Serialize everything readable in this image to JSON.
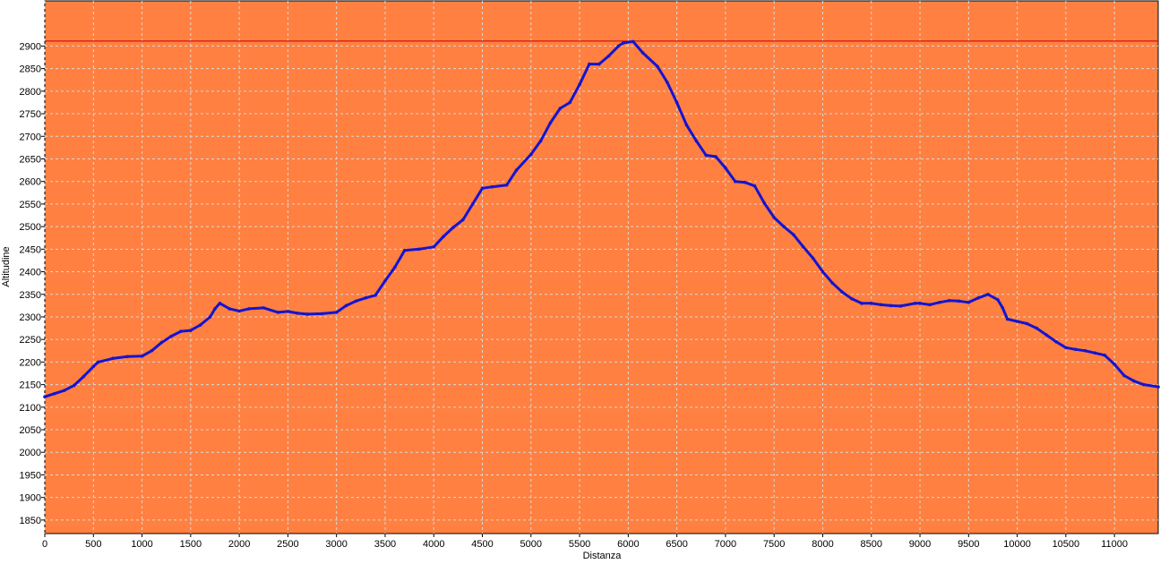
{
  "chart_data": {
    "type": "line",
    "xlabel": "Distanza",
    "ylabel": "Altitudine",
    "xlim": [
      0,
      11450
    ],
    "ylim": [
      1820,
      3000
    ],
    "x_ticks": [
      0,
      500,
      1000,
      1500,
      2000,
      2500,
      3000,
      3500,
      4000,
      4500,
      5000,
      5500,
      6000,
      6500,
      7000,
      7500,
      8000,
      8500,
      9000,
      9500,
      10000,
      10500,
      11000
    ],
    "y_ticks": [
      1850,
      1900,
      1950,
      2000,
      2050,
      2100,
      2150,
      2200,
      2250,
      2300,
      2350,
      2400,
      2450,
      2500,
      2550,
      2600,
      2650,
      2700,
      2750,
      2800,
      2850,
      2900
    ],
    "reference_line": 2911,
    "grid": true,
    "colors": {
      "plot_bg": "#FF8040",
      "line": "#1414D2",
      "grid": "#D9D9D9",
      "ref_line": "#C00000"
    },
    "series": [
      {
        "x": [
          0,
          100,
          200,
          300,
          400,
          500,
          550,
          700,
          850,
          1000,
          1100,
          1200,
          1300,
          1400,
          1500,
          1600,
          1700,
          1750,
          1800,
          1900,
          2000,
          2100,
          2250,
          2400,
          2500,
          2600,
          2700,
          2850,
          3000,
          3100,
          3200,
          3300,
          3400,
          3500,
          3600,
          3700,
          3850,
          4000,
          4100,
          4200,
          4300,
          4400,
          4500,
          4600,
          4750,
          4850,
          5000,
          5100,
          5200,
          5300,
          5400,
          5500,
          5600,
          5700,
          5800,
          5900,
          5950,
          6050,
          6150,
          6300,
          6400,
          6500,
          6600,
          6700,
          6800,
          6900,
          7000,
          7100,
          7200,
          7300,
          7400,
          7500,
          7600,
          7700,
          7800,
          7900,
          8000,
          8100,
          8200,
          8300,
          8400,
          8500,
          8600,
          8700,
          8800,
          8950,
          9000,
          9100,
          9200,
          9300,
          9400,
          9500,
          9600,
          9700,
          9800,
          9850,
          9900,
          10000,
          10100,
          10200,
          10300,
          10400,
          10500,
          10600,
          10700,
          10800,
          10900,
          11000,
          11100,
          11200,
          11300,
          11450
        ],
        "y": [
          2123,
          2130,
          2137,
          2148,
          2168,
          2190,
          2200,
          2208,
          2212,
          2213,
          2225,
          2243,
          2257,
          2268,
          2270,
          2282,
          2300,
          2318,
          2330,
          2318,
          2313,
          2318,
          2320,
          2310,
          2312,
          2308,
          2306,
          2307,
          2310,
          2325,
          2335,
          2342,
          2348,
          2380,
          2410,
          2447,
          2450,
          2455,
          2478,
          2498,
          2515,
          2550,
          2585,
          2588,
          2592,
          2625,
          2660,
          2690,
          2730,
          2762,
          2775,
          2815,
          2860,
          2860,
          2878,
          2900,
          2907,
          2910,
          2885,
          2855,
          2820,
          2775,
          2725,
          2690,
          2658,
          2655,
          2630,
          2600,
          2598,
          2590,
          2552,
          2520,
          2500,
          2482,
          2455,
          2430,
          2400,
          2375,
          2355,
          2340,
          2330,
          2330,
          2327,
          2325,
          2324,
          2330,
          2330,
          2327,
          2332,
          2336,
          2335,
          2332,
          2342,
          2350,
          2338,
          2320,
          2295,
          2290,
          2285,
          2275,
          2260,
          2245,
          2232,
          2228,
          2225,
          2220,
          2215,
          2195,
          2170,
          2158,
          2150,
          2145
        ]
      }
    ]
  }
}
